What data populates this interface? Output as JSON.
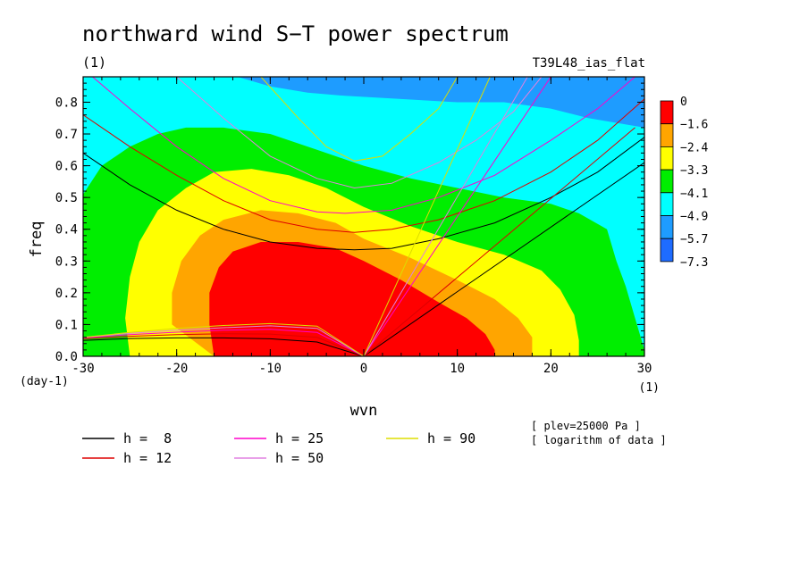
{
  "chart_data": {
    "type": "heatmap",
    "title": "northward wind S−T power spectrum",
    "unit_label": "(1)",
    "run_label": "T39L48_ias_flat",
    "xlabel": "wvn",
    "xunit": "(1)",
    "ylabel": "freq",
    "yunit": "(day-1)",
    "xlim": [
      -30,
      30
    ],
    "ylim": [
      0,
      0.88
    ],
    "x_ticks": [
      "-30",
      "-20",
      "-10",
      "0",
      "10",
      "20",
      "30"
    ],
    "y_ticks": [
      "0.0",
      "0.1",
      "0.2",
      "0.3",
      "0.4",
      "0.5",
      "0.6",
      "0.7",
      "0.8"
    ],
    "grid": false,
    "notes": [
      "[ plev=25000 Pa ]",
      "[ logarithm of data ]"
    ],
    "colorbar": {
      "labels": [
        "0",
        "−1.6",
        "−2.4",
        "−3.3",
        "−4.1",
        "−4.9",
        "−5.7",
        "−7.3"
      ],
      "colors": [
        "#ff0000",
        "#ffa500",
        "#ffff00",
        "#00ee00",
        "#00ffff",
        "#1e9cff",
        "#1e6cff"
      ]
    },
    "contour_regions": [
      {
        "color": "#00ffff",
        "points": [
          [
            -30,
            0
          ],
          [
            30,
            0
          ],
          [
            30,
            0.88
          ],
          [
            -30,
            0.88
          ]
        ]
      },
      {
        "color": "#1e9cff",
        "points": [
          [
            -13.5,
            0.88
          ],
          [
            30,
            0.88
          ],
          [
            30,
            0.72
          ],
          [
            24,
            0.75
          ],
          [
            20,
            0.78
          ],
          [
            15,
            0.8
          ],
          [
            10,
            0.8
          ],
          [
            4,
            0.81
          ],
          [
            -2,
            0.82
          ],
          [
            -6,
            0.83
          ],
          [
            -10,
            0.85
          ]
        ]
      },
      {
        "color": "#00ee00",
        "points": [
          [
            -30,
            0
          ],
          [
            -30,
            0.51
          ],
          [
            -28,
            0.6
          ],
          [
            -25,
            0.66
          ],
          [
            -22,
            0.7
          ],
          [
            -19,
            0.72
          ],
          [
            -15,
            0.72
          ],
          [
            -10,
            0.7
          ],
          [
            -5,
            0.65
          ],
          [
            0,
            0.6
          ],
          [
            5,
            0.56
          ],
          [
            10,
            0.53
          ],
          [
            15,
            0.5
          ],
          [
            20,
            0.48
          ],
          [
            23,
            0.45
          ],
          [
            26,
            0.4
          ],
          [
            27,
            0.3
          ],
          [
            28,
            0.22
          ],
          [
            29,
            0.12
          ],
          [
            30,
            0.02
          ],
          [
            30,
            0
          ]
        ]
      },
      {
        "color": "#ffff00",
        "points": [
          [
            -25,
            0
          ],
          [
            -25.5,
            0.12
          ],
          [
            -25,
            0.25
          ],
          [
            -24,
            0.36
          ],
          [
            -22,
            0.46
          ],
          [
            -19,
            0.53
          ],
          [
            -16,
            0.58
          ],
          [
            -12,
            0.59
          ],
          [
            -8,
            0.57
          ],
          [
            -4,
            0.53
          ],
          [
            0,
            0.47
          ],
          [
            5,
            0.41
          ],
          [
            10,
            0.36
          ],
          [
            15,
            0.32
          ],
          [
            19,
            0.27
          ],
          [
            21,
            0.21
          ],
          [
            22.5,
            0.13
          ],
          [
            23,
            0.05
          ],
          [
            23,
            0
          ]
        ]
      },
      {
        "color": "#ffa500",
        "points": [
          [
            -16,
            0
          ],
          [
            -20.5,
            0.1
          ],
          [
            -20.5,
            0.2
          ],
          [
            -19.5,
            0.3
          ],
          [
            -17.5,
            0.38
          ],
          [
            -15,
            0.43
          ],
          [
            -11,
            0.46
          ],
          [
            -7,
            0.45
          ],
          [
            -3,
            0.42
          ],
          [
            0,
            0.37
          ],
          [
            5,
            0.31
          ],
          [
            10,
            0.24
          ],
          [
            14,
            0.18
          ],
          [
            16.5,
            0.12
          ],
          [
            18,
            0.06
          ],
          [
            18,
            0
          ]
        ]
      },
      {
        "color": "#ff0000",
        "points": [
          [
            -16,
            0
          ],
          [
            -16.5,
            0.1
          ],
          [
            -16.5,
            0.2
          ],
          [
            -15.5,
            0.28
          ],
          [
            -14,
            0.33
          ],
          [
            -11,
            0.36
          ],
          [
            -7,
            0.36
          ],
          [
            -3,
            0.34
          ],
          [
            0,
            0.3
          ],
          [
            4,
            0.24
          ],
          [
            8,
            0.17
          ],
          [
            11,
            0.12
          ],
          [
            13,
            0.07
          ],
          [
            14,
            0.02
          ],
          [
            14,
            0
          ]
        ]
      }
    ],
    "series": [
      {
        "name": "h =  8",
        "color": "#000000",
        "lines": [
          [
            [
              -30,
              0.64
            ],
            [
              -25,
              0.54
            ],
            [
              -20,
              0.46
            ],
            [
              -15,
              0.4
            ],
            [
              -10,
              0.36
            ],
            [
              -5,
              0.34
            ],
            [
              -1,
              0.335
            ],
            [
              3,
              0.34
            ],
            [
              8,
              0.37
            ],
            [
              14,
              0.42
            ],
            [
              20,
              0.5
            ],
            [
              25,
              0.58
            ],
            [
              30,
              0.69
            ]
          ],
          [
            [
              -30,
              0.05
            ],
            [
              -25,
              0.056
            ],
            [
              -20,
              0.058
            ],
            [
              -15,
              0.058
            ],
            [
              -10,
              0.055
            ],
            [
              -5,
              0.045
            ],
            [
              0,
              0
            ]
          ],
          [
            [
              0,
              0
            ],
            [
              30,
              0.61
            ]
          ]
        ]
      },
      {
        "name": "h = 12",
        "color": "#dd0000",
        "lines": [
          [
            [
              -30,
              0.76
            ],
            [
              -25,
              0.66
            ],
            [
              -20,
              0.57
            ],
            [
              -15,
              0.49
            ],
            [
              -10,
              0.43
            ],
            [
              -5,
              0.4
            ],
            [
              -1,
              0.39
            ],
            [
              3,
              0.4
            ],
            [
              8,
              0.43
            ],
            [
              14,
              0.49
            ],
            [
              20,
              0.58
            ],
            [
              25,
              0.68
            ],
            [
              30,
              0.81
            ]
          ],
          [
            [
              -30,
              0.055
            ],
            [
              -25,
              0.063
            ],
            [
              -20,
              0.068
            ],
            [
              -15,
              0.071
            ],
            [
              -10,
              0.07
            ],
            [
              -5,
              0.06
            ],
            [
              0,
              0
            ]
          ],
          [
            [
              0,
              0
            ],
            [
              29,
              0.72
            ]
          ]
        ]
      },
      {
        "name": "h = 25",
        "color": "#ff00cc",
        "lines": [
          [
            [
              -29,
              0.88
            ],
            [
              -25,
              0.78
            ],
            [
              -20,
              0.66
            ],
            [
              -15,
              0.56
            ],
            [
              -10,
              0.49
            ],
            [
              -5,
              0.455
            ],
            [
              -2,
              0.45
            ],
            [
              3,
              0.46
            ],
            [
              8,
              0.5
            ],
            [
              14,
              0.57
            ],
            [
              20,
              0.68
            ],
            [
              25,
              0.78
            ],
            [
              29,
              0.88
            ]
          ],
          [
            [
              -30,
              0.058
            ],
            [
              -25,
              0.068
            ],
            [
              -20,
              0.076
            ],
            [
              -15,
              0.082
            ],
            [
              -10,
              0.085
            ],
            [
              -5,
              0.075
            ],
            [
              0,
              0
            ]
          ],
          [
            [
              0,
              0
            ],
            [
              20,
              0.88
            ]
          ]
        ]
      },
      {
        "name": "h = 50",
        "color": "#e080e0",
        "lines": [
          [
            [
              -20,
              0.88
            ],
            [
              -15,
              0.75
            ],
            [
              -10,
              0.63
            ],
            [
              -5,
              0.56
            ],
            [
              -1,
              0.53
            ],
            [
              3,
              0.545
            ],
            [
              8,
              0.61
            ],
            [
              12,
              0.68
            ],
            [
              16,
              0.77
            ],
            [
              19,
              0.88
            ]
          ],
          [
            [
              -30,
              0.06
            ],
            [
              -25,
              0.072
            ],
            [
              -20,
              0.082
            ],
            [
              -15,
              0.09
            ],
            [
              -10,
              0.096
            ],
            [
              -5,
              0.088
            ],
            [
              0,
              0
            ]
          ],
          [
            [
              0,
              0
            ],
            [
              17.5,
              0.88
            ]
          ]
        ]
      },
      {
        "name": "h = 90",
        "color": "#dddd00",
        "lines": [
          [
            [
              -11,
              0.88
            ],
            [
              -7,
              0.75
            ],
            [
              -4,
              0.66
            ],
            [
              -1,
              0.615
            ],
            [
              2,
              0.63
            ],
            [
              5,
              0.7
            ],
            [
              8,
              0.78
            ],
            [
              10,
              0.88
            ]
          ],
          [
            [
              -30,
              0.06
            ],
            [
              -25,
              0.075
            ],
            [
              -20,
              0.088
            ],
            [
              -15,
              0.097
            ],
            [
              -10,
              0.103
            ],
            [
              -5,
              0.095
            ],
            [
              0,
              0
            ]
          ],
          [
            [
              0,
              0
            ],
            [
              13.5,
              0.88
            ]
          ]
        ]
      }
    ]
  }
}
